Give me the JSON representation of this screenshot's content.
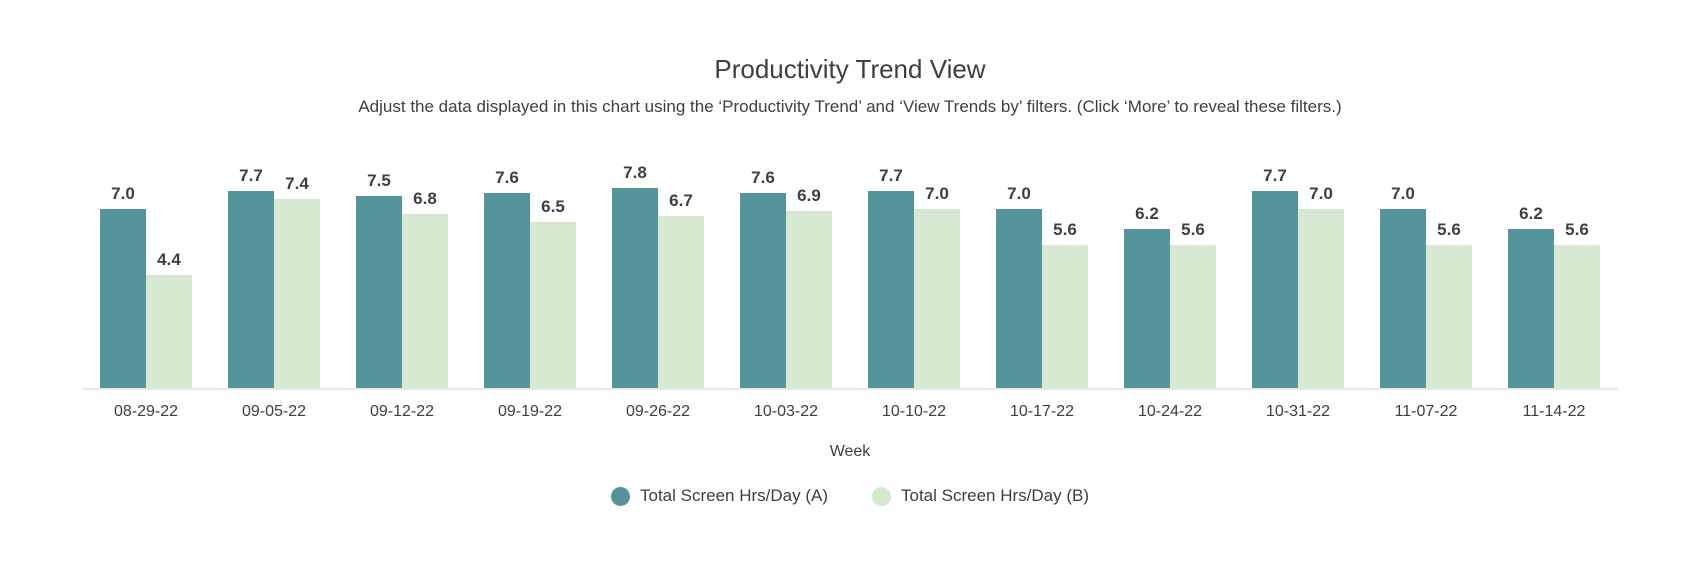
{
  "chart": {
    "title": "Productivity Trend View",
    "subtitle": "Adjust the data displayed in this chart using the ‘Productivity Trend’ and ‘View Trends by’ filters. (Click ‘More’ to reveal these filters.)",
    "xlabel": "Week"
  },
  "chart_data": {
    "type": "bar",
    "title": "Productivity Trend View",
    "subtitle": "Adjust the data displayed in this chart using the ‘Productivity Trend’ and ‘View Trends by’ filters. (Click ‘More’ to reveal these filters.)",
    "xlabel": "Week",
    "ylabel": "",
    "ylim": [
      0,
      8
    ],
    "grid": false,
    "value_labels": true,
    "value_label_format": "0.0",
    "legend_position": "bottom",
    "legend_marker": "circle",
    "axis_line_color": "#e8e8e8",
    "label_color": "#3c4043",
    "categories": [
      "08-29-22",
      "09-05-22",
      "09-12-22",
      "09-19-22",
      "09-26-22",
      "10-03-22",
      "10-10-22",
      "10-17-22",
      "10-24-22",
      "10-31-22",
      "11-07-22",
      "11-14-22"
    ],
    "series": [
      {
        "name": "Total Screen Hrs/Day (A)",
        "color": "#54949a",
        "values": [
          7.0,
          7.7,
          7.5,
          7.6,
          7.8,
          7.6,
          7.7,
          7.0,
          6.2,
          7.7,
          7.0,
          6.2
        ]
      },
      {
        "name": "Total Screen Hrs/Day (B)",
        "color": "#d7e8d1",
        "values": [
          4.4,
          7.4,
          6.8,
          6.5,
          6.7,
          6.9,
          7.0,
          5.6,
          5.6,
          7.0,
          5.6,
          5.6
        ]
      }
    ]
  }
}
